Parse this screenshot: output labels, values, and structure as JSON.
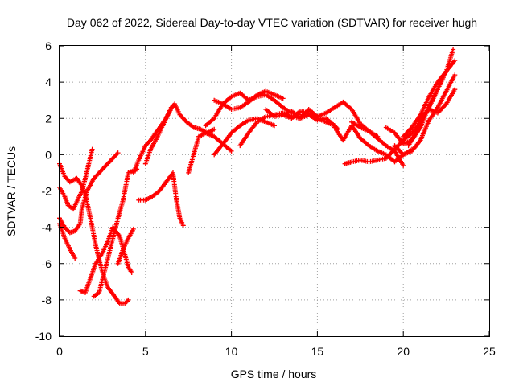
{
  "chart_data": {
    "type": "scatter",
    "title": "Day 062 of 2022, Sidereal Day-to-day VTEC variation (SDTVAR) for receiver hugh",
    "xlabel": "GPS time / hours",
    "ylabel": "SDTVAR / TECUs",
    "xlim": [
      0,
      25
    ],
    "ylim": [
      -10,
      6
    ],
    "xticks": [
      "0",
      "5",
      "10",
      "15",
      "20",
      "25"
    ],
    "yticks": [
      "-10",
      "-8",
      "-6",
      "-4",
      "-2",
      "0",
      "2",
      "4",
      "6"
    ],
    "grid": true,
    "marker": "plus",
    "color": "#ff0000",
    "series": [
      {
        "x": [
          0.0,
          0.3,
          0.6,
          1.0,
          1.3,
          1.5,
          1.8,
          2.1,
          2.5,
          2.8,
          3.2,
          3.5,
          3.8,
          4.0
        ],
        "y": [
          -0.5,
          -1.2,
          -1.5,
          -1.3,
          -1.7,
          -2.2,
          -3.5,
          -5.0,
          -6.5,
          -7.3,
          -7.8,
          -8.2,
          -8.2,
          -8.0
        ]
      },
      {
        "x": [
          0.0,
          0.3,
          0.5,
          0.8,
          1.0,
          1.3,
          1.5,
          1.7,
          1.9
        ],
        "y": [
          -1.8,
          -2.3,
          -2.8,
          -3.0,
          -2.6,
          -2.0,
          -1.3,
          -0.5,
          0.3
        ]
      },
      {
        "x": [
          0.0,
          0.3,
          0.6,
          0.9,
          1.2,
          1.3,
          1.6,
          2.0,
          2.5,
          3.0,
          3.4
        ],
        "y": [
          -3.5,
          -4.0,
          -4.3,
          -4.2,
          -3.8,
          -3.0,
          -2.0,
          -1.3,
          -0.8,
          -0.3,
          0.1
        ]
      },
      {
        "x": [
          0.0,
          0.3,
          0.6,
          0.9
        ],
        "y": [
          -3.8,
          -4.6,
          -5.2,
          -5.7
        ]
      },
      {
        "x": [
          1.2,
          1.5,
          1.8,
          2.1,
          2.5,
          2.8,
          3.1,
          3.5,
          3.8,
          4.0,
          4.2
        ],
        "y": [
          -7.5,
          -7.6,
          -6.8,
          -6.0,
          -5.4,
          -4.8,
          -4.0,
          -4.5,
          -5.5,
          -6.2,
          -6.5
        ]
      },
      {
        "x": [
          2.0,
          2.3,
          2.6,
          3.0,
          3.4,
          3.7,
          4.0,
          4.5
        ],
        "y": [
          -7.8,
          -7.6,
          -6.5,
          -5.0,
          -3.5,
          -2.5,
          -1.0,
          -0.8
        ]
      },
      {
        "x": [
          3.4,
          3.7,
          4.0,
          4.3
        ],
        "y": [
          -6.0,
          -5.2,
          -4.6,
          -4.1
        ]
      },
      {
        "x": [
          4.3,
          4.6,
          5.0,
          5.3,
          5.6,
          5.9,
          6.2,
          6.5,
          6.7,
          7.0,
          7.4,
          7.8,
          8.2,
          8.6,
          9.0
        ],
        "y": [
          -1.0,
          -0.3,
          0.5,
          0.8,
          1.2,
          1.6,
          2.0,
          2.6,
          2.8,
          2.2,
          1.8,
          1.5,
          1.4,
          1.2,
          1.4
        ]
      },
      {
        "x": [
          4.6,
          5.0,
          5.4,
          5.8,
          6.2,
          6.6,
          6.8,
          7.0,
          7.2
        ],
        "y": [
          -2.5,
          -2.5,
          -2.3,
          -2.0,
          -1.5,
          -1.0,
          -2.5,
          -3.5,
          -3.9
        ]
      },
      {
        "x": [
          5.0,
          5.3,
          5.7,
          6.0,
          6.3,
          6.6
        ],
        "y": [
          -0.5,
          0.3,
          1.0,
          1.6,
          2.2,
          2.7
        ]
      },
      {
        "x": [
          7.5,
          7.8,
          8.1,
          8.5,
          9.0,
          9.5,
          10.0
        ],
        "y": [
          -1.0,
          0.0,
          1.0,
          1.2,
          1.0,
          0.6,
          0.2
        ]
      },
      {
        "x": [
          8.5,
          9.0,
          9.5,
          10.0,
          10.5,
          11.0,
          11.5,
          12.0,
          12.5,
          13.0,
          13.5,
          14.0
        ],
        "y": [
          1.6,
          2.0,
          2.8,
          3.2,
          3.4,
          3.0,
          3.2,
          3.3,
          3.0,
          2.6,
          2.3,
          2.2
        ]
      },
      {
        "x": [
          9.0,
          9.5,
          10.0,
          10.5,
          11.0,
          11.5,
          12.0,
          12.5,
          13.0
        ],
        "y": [
          3.0,
          2.8,
          2.5,
          2.6,
          2.9,
          3.3,
          3.5,
          3.3,
          3.1
        ]
      },
      {
        "x": [
          9.0,
          9.5,
          10.0,
          10.5,
          11.0,
          11.5,
          12.0,
          12.5
        ],
        "y": [
          0.0,
          0.6,
          1.2,
          1.6,
          1.9,
          2.0,
          1.8,
          1.6
        ]
      },
      {
        "x": [
          10.5,
          11.0,
          11.5,
          12.0,
          12.5,
          13.0,
          13.5,
          14.0,
          14.5,
          15.0,
          15.5,
          16.0
        ],
        "y": [
          0.5,
          1.2,
          1.8,
          2.1,
          2.2,
          2.3,
          2.1,
          2.0,
          2.2,
          1.9,
          2.0,
          1.6
        ]
      },
      {
        "x": [
          12.0,
          12.5,
          13.0,
          13.5,
          14.0,
          14.5,
          15.0,
          15.5,
          16.0,
          16.2
        ],
        "y": [
          2.5,
          2.1,
          2.2,
          2.0,
          2.4,
          2.3,
          2.0,
          1.8,
          1.6,
          1.4
        ]
      },
      {
        "x": [
          13.0,
          13.5,
          14.0,
          14.5,
          15.0,
          15.5,
          16.0,
          16.5,
          17.0,
          17.5,
          18.0,
          18.5,
          19.0,
          19.5,
          20.0
        ],
        "y": [
          2.2,
          2.4,
          2.0,
          2.5,
          2.1,
          2.3,
          2.6,
          2.9,
          2.5,
          1.7,
          1.3,
          0.9,
          0.5,
          0.2,
          -0.6
        ]
      },
      {
        "x": [
          16.0,
          16.5,
          17.0,
          17.5,
          18.0,
          18.5,
          19.0,
          19.5,
          20.0,
          20.5
        ],
        "y": [
          1.5,
          0.8,
          1.6,
          0.9,
          0.5,
          0.2,
          0.0,
          -0.4,
          0.0,
          0.3
        ]
      },
      {
        "x": [
          16.6,
          17.0,
          17.5,
          18.0,
          18.5,
          19.0,
          19.5,
          20.0,
          20.5,
          21.0,
          21.5,
          22.0
        ],
        "y": [
          -0.5,
          -0.4,
          -0.3,
          -0.4,
          -0.3,
          -0.2,
          0.3,
          0.8,
          1.2,
          1.8,
          2.6,
          3.6
        ]
      },
      {
        "x": [
          17.0,
          17.5,
          18.0,
          18.5
        ],
        "y": [
          1.8,
          1.5,
          1.3,
          1.0
        ]
      },
      {
        "x": [
          19.0,
          19.5,
          20.0,
          20.5,
          21.0,
          21.5,
          22.0,
          22.5,
          22.9
        ],
        "y": [
          1.5,
          1.2,
          0.6,
          0.8,
          1.5,
          2.7,
          3.6,
          4.6,
          5.8
        ]
      },
      {
        "x": [
          19.5,
          20.0,
          20.5,
          21.0,
          21.5,
          22.0,
          22.5,
          23.0
        ],
        "y": [
          0.5,
          0.0,
          0.2,
          0.8,
          1.9,
          2.6,
          3.5,
          4.4
        ]
      },
      {
        "x": [
          20.0,
          20.5,
          21.0,
          21.5,
          22.0,
          22.5,
          23.0
        ],
        "y": [
          1.0,
          1.5,
          2.2,
          3.2,
          4.0,
          4.6,
          5.2
        ]
      },
      {
        "x": [
          20.3,
          20.7,
          21.0,
          21.5,
          22.0,
          22.5,
          23.0
        ],
        "y": [
          0.5,
          1.2,
          2.0,
          2.5,
          2.3,
          2.8,
          3.6
        ]
      }
    ]
  }
}
